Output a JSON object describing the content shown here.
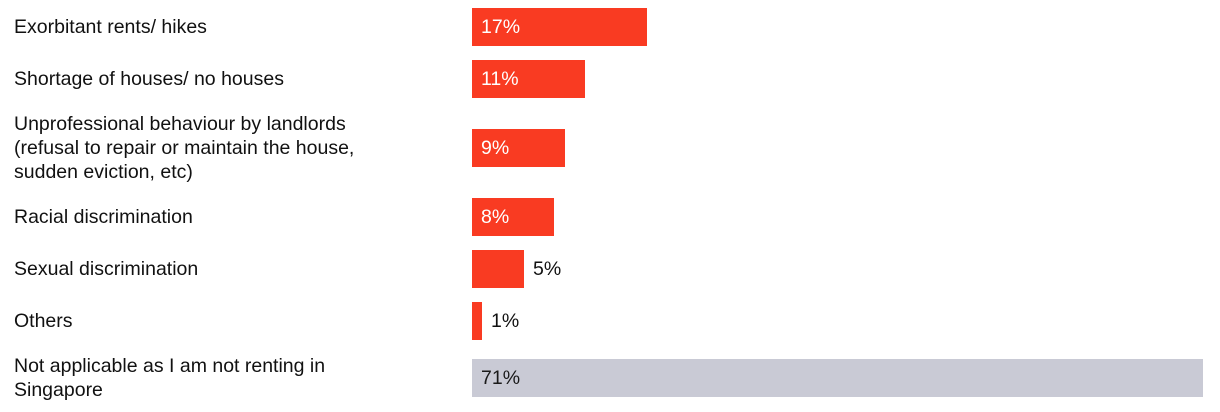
{
  "chart_data": {
    "type": "bar",
    "orientation": "horizontal",
    "title": "",
    "xlabel": "",
    "ylabel": "",
    "grid": false,
    "legend": "none",
    "axis_labels_visible": false,
    "value_suffix": "%",
    "xlim": [
      0,
      72
    ],
    "categories": [
      "Exorbitant rents/ hikes",
      "Shortage of houses/ no houses",
      "Unprofessional behaviour by landlords (refusal to repair or maintain the house, sudden eviction, etc)",
      "Racial discrimination",
      "Sexual discrimination",
      "Others",
      "Not applicable as I am not renting in Singapore"
    ],
    "values": [
      17,
      11,
      9,
      8,
      5,
      1,
      71
    ],
    "rows": [
      {
        "label": "Exorbitant rents/ hikes",
        "value": 17,
        "value_label": "17%",
        "bar_color": "#F93B22",
        "value_inside": true,
        "value_color": "#FFFFFF"
      },
      {
        "label": "Shortage of houses/ no houses",
        "value": 11,
        "value_label": "11%",
        "bar_color": "#F93B22",
        "value_inside": true,
        "value_color": "#FFFFFF"
      },
      {
        "label": "Unprofessional behaviour by landlords (refusal to repair or maintain the house, sudden eviction, etc)",
        "value": 9,
        "value_label": "9%",
        "bar_color": "#F93B22",
        "value_inside": true,
        "value_color": "#FFFFFF"
      },
      {
        "label": "Racial discrimination",
        "value": 8,
        "value_label": "8%",
        "bar_color": "#F93B22",
        "value_inside": true,
        "value_color": "#FFFFFF"
      },
      {
        "label": "Sexual discrimination",
        "value": 5,
        "value_label": "5%",
        "bar_color": "#F93B22",
        "value_inside": false,
        "value_color": "#111111"
      },
      {
        "label": "Others",
        "value": 1,
        "value_label": "1%",
        "bar_color": "#F93B22",
        "value_inside": false,
        "value_color": "#111111"
      },
      {
        "label": "Not applicable as I am not renting in Singapore",
        "value": 71,
        "value_label": "71%",
        "bar_color": "#C9CAD5",
        "value_inside": true,
        "value_color": "#1A1A1A"
      }
    ],
    "style": {
      "primary_bar_color": "#F93B22",
      "neutral_bar_color": "#C9CAD5",
      "label_text_color": "#111111",
      "inside_value_color_on_red": "#FFFFFF",
      "inside_value_color_on_grey": "#1A1A1A"
    }
  }
}
